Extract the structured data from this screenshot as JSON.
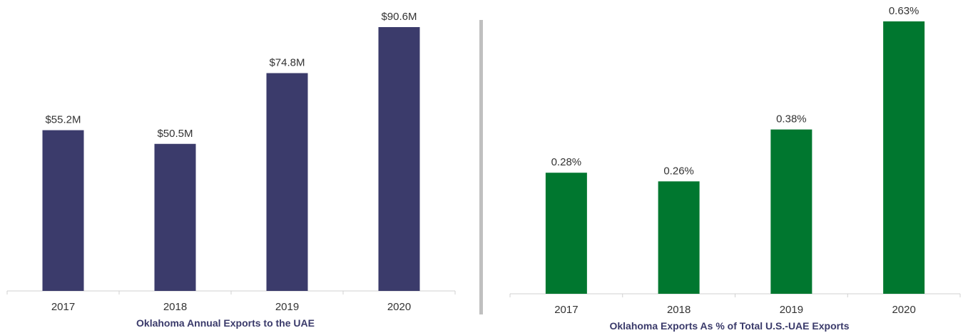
{
  "chart_data": [
    {
      "type": "bar",
      "title": "Oklahoma Annual Exports to the UAE",
      "categories": [
        "2017",
        "2018",
        "2019",
        "2020"
      ],
      "values": [
        55.2,
        50.5,
        74.8,
        90.6
      ],
      "value_labels": [
        "$55.2M",
        "$50.5M",
        "$74.8M",
        "$90.6M"
      ],
      "color": "#3b3b6b"
    },
    {
      "type": "bar",
      "title": "Oklahoma Exports As % of Total U.S.-UAE Exports",
      "categories": [
        "2017",
        "2018",
        "2019",
        "2020"
      ],
      "values": [
        0.28,
        0.26,
        0.38,
        0.63
      ],
      "value_labels": [
        "0.28%",
        "0.26%",
        "0.38%",
        "0.63%"
      ],
      "color": "#00772f"
    }
  ]
}
